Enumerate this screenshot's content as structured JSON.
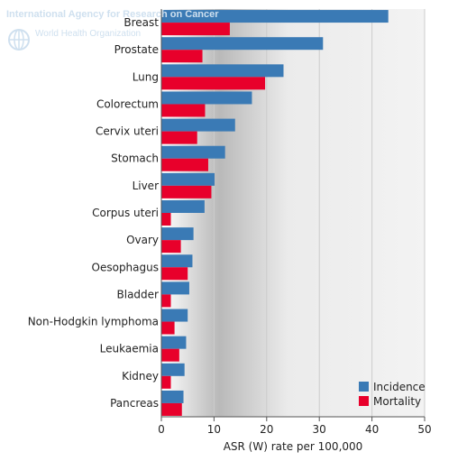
{
  "watermark": {
    "agency": "International Agency for Research on Cancer",
    "org": "World Health Organization",
    "emblem_icon": "who-emblem-icon"
  },
  "chart_data": {
    "type": "bar",
    "orientation": "horizontal",
    "categories": [
      "Breast",
      "Prostate",
      "Lung",
      "Colorectum",
      "Cervix uteri",
      "Stomach",
      "Liver",
      "Corpus uteri",
      "Ovary",
      "Oesophagus",
      "Bladder",
      "Non-Hodgkin lymphoma",
      "Leukaemia",
      "Kidney",
      "Pancreas"
    ],
    "series": [
      {
        "name": "Incidence",
        "color": "#3a7ab5",
        "values": [
          43.1,
          30.7,
          23.2,
          17.2,
          14.0,
          12.1,
          10.1,
          8.2,
          6.1,
          5.9,
          5.3,
          5.0,
          4.7,
          4.4,
          4.2
        ]
      },
      {
        "name": "Mortality",
        "color": "#e8002b",
        "values": [
          13.0,
          7.8,
          19.7,
          8.3,
          6.8,
          8.9,
          9.5,
          1.8,
          3.7,
          5.0,
          1.8,
          2.5,
          3.4,
          1.8,
          3.9
        ]
      }
    ],
    "xlabel": "ASR (W) rate per 100,000",
    "xlim": [
      0,
      50
    ],
    "xticks": [
      "0",
      "10",
      "20",
      "30",
      "40",
      "50"
    ],
    "grid": true,
    "legend": "bottom-right"
  }
}
